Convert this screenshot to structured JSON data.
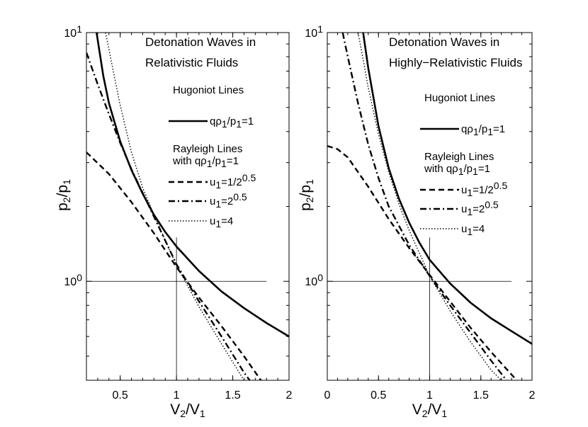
{
  "chart_data": [
    {
      "type": "line",
      "title": [
        "Detonation Waves in",
        "Relativistic Fluids"
      ],
      "xlabel": {
        "main": "V",
        "sub1": "2",
        "mid": "/V",
        "sub2": "1"
      },
      "ylabel": {
        "main": "p",
        "sub1": "2",
        "mid": "/p",
        "sub2": "1"
      },
      "xlim": [
        0.2,
        2
      ],
      "ylim": [
        0.4,
        10
      ],
      "yscale": "log",
      "x_ticks": [
        {
          "value": 0.5,
          "label": "0.5"
        },
        {
          "value": 1,
          "label": "1"
        },
        {
          "value": 1.5,
          "label": "1.5"
        },
        {
          "value": 2,
          "label": "2"
        }
      ],
      "y_ticks": [
        {
          "value": 1,
          "base": "10",
          "exp": "0"
        },
        {
          "value": 10,
          "base": "10",
          "exp": "1"
        }
      ],
      "legend_hugoniot_title": "Hugoniot Lines",
      "legend_rayleigh_title": [
        "Rayleigh Lines",
        "with qρ",
        "1",
        "/p",
        "1",
        "=1"
      ],
      "reference_lines": {
        "x": 1,
        "y": 1
      },
      "series": [
        {
          "name": "Hugoniot",
          "legend": [
            "qρ",
            "1",
            "/p",
            "1",
            "=1",
            ""
          ],
          "style": "solid",
          "x": [
            0.29,
            0.35,
            0.4,
            0.5,
            0.6,
            0.7,
            0.8,
            0.9,
            1.0,
            1.2,
            1.4,
            1.6,
            1.8,
            2.0
          ],
          "y": [
            10.0,
            6.7,
            5.2,
            3.65,
            2.8,
            2.25,
            1.85,
            1.58,
            1.38,
            1.1,
            0.91,
            0.78,
            0.68,
            0.6
          ]
        },
        {
          "name": "Rayleigh u1=1/2^0.5",
          "legend": [
            "u",
            "1",
            "=1/2",
            "",
            "",
            "0.5"
          ],
          "style": "dashed",
          "x": [
            0.2,
            0.4,
            0.6,
            0.8,
            1.0,
            1.2,
            1.4,
            1.6,
            1.75
          ],
          "y": [
            3.3,
            2.7,
            2.08,
            1.56,
            1.14,
            0.86,
            0.66,
            0.5,
            0.4
          ]
        },
        {
          "name": "Rayleigh u1=2^0.5",
          "legend": [
            "u",
            "1",
            "=2",
            "",
            "",
            "0.5"
          ],
          "style": "dashdot",
          "x": [
            0.2,
            0.3,
            0.4,
            0.5,
            0.6,
            0.8,
            1.0,
            1.2,
            1.4,
            1.6,
            1.65
          ],
          "y": [
            8.3,
            6.2,
            4.7,
            3.6,
            2.82,
            1.82,
            1.17,
            0.83,
            0.6,
            0.43,
            0.4
          ]
        },
        {
          "name": "Rayleigh u1=4",
          "legend": [
            "u",
            "1",
            "=4",
            "",
            "",
            ""
          ],
          "style": "dotted",
          "x": [
            0.37,
            0.45,
            0.5,
            0.6,
            0.7,
            0.8,
            1.0,
            1.2,
            1.4,
            1.6
          ],
          "y": [
            10.0,
            6.6,
            5.1,
            3.3,
            2.38,
            1.85,
            1.16,
            0.79,
            0.56,
            0.4
          ]
        }
      ]
    },
    {
      "type": "line",
      "title": [
        "Detonation Waves in",
        "Highly−Relativistic Fluids"
      ],
      "xlabel": {
        "main": "V",
        "sub1": "2",
        "mid": "/V",
        "sub2": "1"
      },
      "ylabel": {
        "main": "p",
        "sub1": "2",
        "mid": "/p",
        "sub2": "1"
      },
      "xlim": [
        0,
        2
      ],
      "ylim": [
        0.4,
        10
      ],
      "yscale": "log",
      "x_ticks": [
        {
          "value": 0,
          "label": "0"
        },
        {
          "value": 0.5,
          "label": "0.5"
        },
        {
          "value": 1,
          "label": "1"
        },
        {
          "value": 1.5,
          "label": "1.5"
        },
        {
          "value": 2,
          "label": "2"
        }
      ],
      "y_ticks": [
        {
          "value": 1,
          "base": "10",
          "exp": "0"
        },
        {
          "value": 10,
          "base": "10",
          "exp": "1"
        }
      ],
      "legend_hugoniot_title": "Hugoniot Lines",
      "legend_rayleigh_title": [
        "Rayleigh Lines",
        "with qρ",
        "1",
        "/p",
        "1",
        "=1"
      ],
      "reference_lines": {
        "x": 1,
        "y": 1
      },
      "series": [
        {
          "name": "Hugoniot",
          "legend": [
            "qρ",
            "1",
            "/p",
            "1",
            "=1",
            ""
          ],
          "style": "solid",
          "x": [
            0.35,
            0.4,
            0.5,
            0.6,
            0.7,
            0.8,
            0.9,
            1.0,
            1.2,
            1.4,
            1.6,
            1.8,
            2.0
          ],
          "y": [
            10.0,
            7.2,
            4.2,
            2.85,
            2.15,
            1.72,
            1.43,
            1.22,
            0.98,
            0.82,
            0.71,
            0.63,
            0.56
          ]
        },
        {
          "name": "Rayleigh u1=1/2^0.5",
          "legend": [
            "u",
            "1",
            "=1/2",
            "",
            "",
            "0.5"
          ],
          "style": "dashed",
          "x": [
            0.0,
            0.1,
            0.2,
            0.4,
            0.6,
            0.8,
            1.0,
            1.2,
            1.4,
            1.6,
            1.85
          ],
          "y": [
            3.5,
            3.4,
            3.15,
            2.4,
            1.78,
            1.36,
            1.06,
            0.83,
            0.65,
            0.52,
            0.4
          ]
        },
        {
          "name": "Rayleigh u1=2^0.5",
          "legend": [
            "u",
            "1",
            "=2",
            "",
            "",
            "0.5"
          ],
          "style": "dashdot",
          "x": [
            0.15,
            0.2,
            0.3,
            0.4,
            0.5,
            0.6,
            0.8,
            1.0,
            1.2,
            1.4,
            1.6,
            1.75
          ],
          "y": [
            10.0,
            8.0,
            5.2,
            3.55,
            2.6,
            2.0,
            1.4,
            1.05,
            0.8,
            0.62,
            0.48,
            0.4
          ]
        },
        {
          "name": "Rayleigh u1=4",
          "legend": [
            "u",
            "1",
            "=4",
            "",
            "",
            ""
          ],
          "style": "dotted",
          "x": [
            0.3,
            0.35,
            0.4,
            0.5,
            0.6,
            0.7,
            0.8,
            1.0,
            1.2,
            1.4,
            1.6,
            1.7
          ],
          "y": [
            10.0,
            7.8,
            6.0,
            3.9,
            2.75,
            2.05,
            1.6,
            1.05,
            0.76,
            0.57,
            0.44,
            0.4
          ]
        }
      ]
    }
  ]
}
